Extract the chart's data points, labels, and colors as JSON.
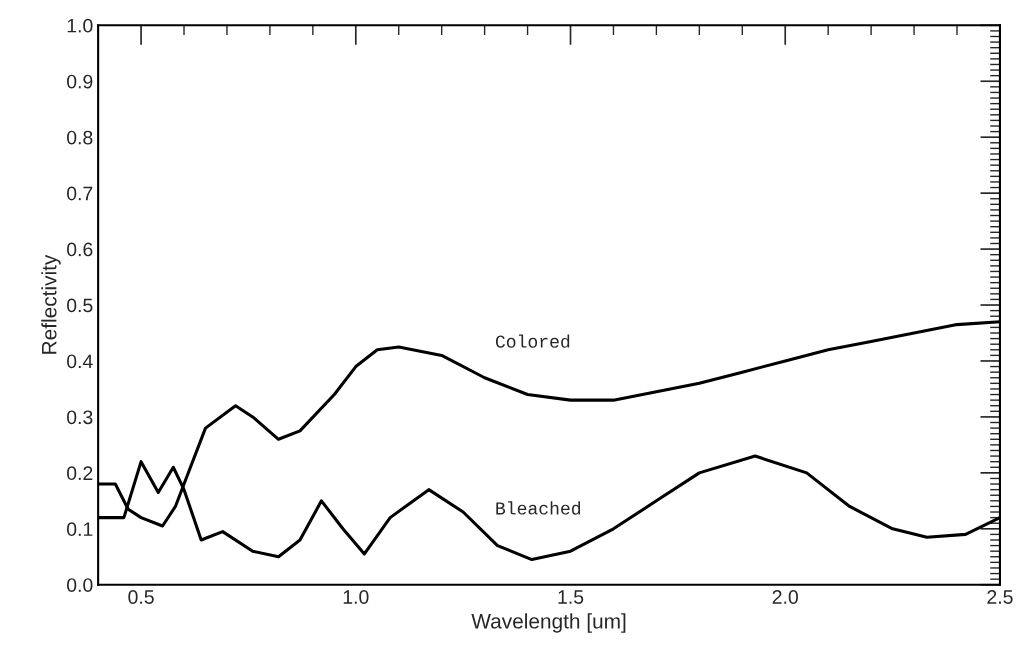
{
  "chart_data": {
    "type": "line",
    "xlabel": "Wavelength [um]",
    "ylabel": "Reflectivity",
    "xlim": [
      0.4,
      2.5
    ],
    "ylim": [
      0.0,
      1.0
    ],
    "xticks": [
      {
        "value": 0.5,
        "label": "0.5"
      },
      {
        "value": 1.0,
        "label": "1.0"
      },
      {
        "value": 1.5,
        "label": "1.5"
      },
      {
        "value": 2.0,
        "label": "2.0"
      },
      {
        "value": 2.5,
        "label": "2.5"
      }
    ],
    "yticks": [
      {
        "value": 0.0,
        "label": "0.0"
      },
      0.1,
      0.2,
      0.3,
      0.4,
      0.5,
      0.6,
      0.7,
      0.8,
      0.9,
      {
        "value": 1.0,
        "label": "1.0"
      }
    ],
    "grid": false,
    "legend": false,
    "marker": "none",
    "line_style": "solid",
    "series": [
      {
        "name": "Colored",
        "color": "#000000",
        "x": [
          0.4,
          0.44,
          0.47,
          0.5,
          0.55,
          0.58,
          0.6,
          0.65,
          0.72,
          0.76,
          0.82,
          0.87,
          0.95,
          1.0,
          1.05,
          1.1,
          1.2,
          1.3,
          1.4,
          1.5,
          1.6,
          1.7,
          1.8,
          1.9,
          2.0,
          2.1,
          2.2,
          2.3,
          2.4,
          2.5
        ],
        "values": [
          0.18,
          0.18,
          0.135,
          0.12,
          0.105,
          0.14,
          0.18,
          0.28,
          0.32,
          0.3,
          0.26,
          0.275,
          0.34,
          0.39,
          0.42,
          0.425,
          0.41,
          0.37,
          0.34,
          0.33,
          0.33,
          0.345,
          0.36,
          0.38,
          0.4,
          0.42,
          0.435,
          0.45,
          0.465,
          0.47
        ]
      },
      {
        "name": "Bleached",
        "color": "#000000",
        "x": [
          0.4,
          0.46,
          0.5,
          0.54,
          0.575,
          0.6,
          0.64,
          0.69,
          0.76,
          0.82,
          0.87,
          0.92,
          0.97,
          1.02,
          1.08,
          1.17,
          1.25,
          1.33,
          1.41,
          1.5,
          1.6,
          1.7,
          1.8,
          1.93,
          2.05,
          2.15,
          2.25,
          2.33,
          2.42,
          2.5
        ],
        "values": [
          0.12,
          0.12,
          0.22,
          0.165,
          0.21,
          0.17,
          0.08,
          0.095,
          0.06,
          0.05,
          0.08,
          0.15,
          0.1,
          0.055,
          0.12,
          0.17,
          0.13,
          0.07,
          0.045,
          0.06,
          0.1,
          0.15,
          0.2,
          0.23,
          0.2,
          0.14,
          0.1,
          0.085,
          0.09,
          0.12
        ]
      }
    ]
  }
}
